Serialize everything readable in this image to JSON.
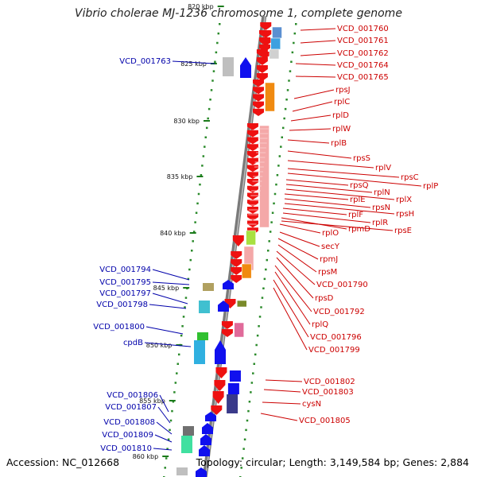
{
  "title": "Vibrio cholerae MJ-1236 chromosome 1, complete genome",
  "footer": {
    "accession": "Accession: NC_012668",
    "topology": "Topology: circular; Length: 3,149,584 bp; Genes: 2,884"
  },
  "ticks": [
    "820 kbp",
    "825 kbp",
    "830 kbp",
    "835 kbp",
    "840 kbp",
    "845 kbp",
    "850 kbp",
    "855 kbp",
    "860 kbp"
  ],
  "right_labels": [
    "VCD_001760",
    "VCD_001761",
    "VCD_001762",
    "VCD_001764",
    "VCD_001765",
    "rpsJ",
    "rplC",
    "rplD",
    "rplW",
    "rplB",
    "rpsS",
    "rplV",
    "rpsC",
    "rplP",
    "rpsQ",
    "rplN",
    "rplX",
    "rplE",
    "rpsN",
    "rpsH",
    "rplF",
    "rplR",
    "rpmD",
    "rpsE",
    "rplO",
    "secY",
    "rpmJ",
    "rpsM",
    "VCD_001790",
    "rpsD",
    "VCD_001792",
    "rplQ",
    "VCD_001796",
    "VCD_001799",
    "VCD_001802",
    "VCD_001803",
    "cysN",
    "VCD_001805"
  ],
  "left_labels": [
    "VCD_001763",
    "VCD_001794",
    "VCD_001795",
    "VCD_001797",
    "VCD_001798",
    "VCD_001800",
    "cpdB",
    "VCD_001806",
    "VCD_001807",
    "VCD_001808",
    "VCD_001809",
    "VCD_001810"
  ],
  "colors": {
    "backbone": "#7a7a7a",
    "red_label": "#cc0000",
    "blue_label": "#0000aa",
    "reverse_gene": "#ee1111",
    "forward_gene": "#1010ee",
    "dot_track": "#2a8a2a"
  }
}
